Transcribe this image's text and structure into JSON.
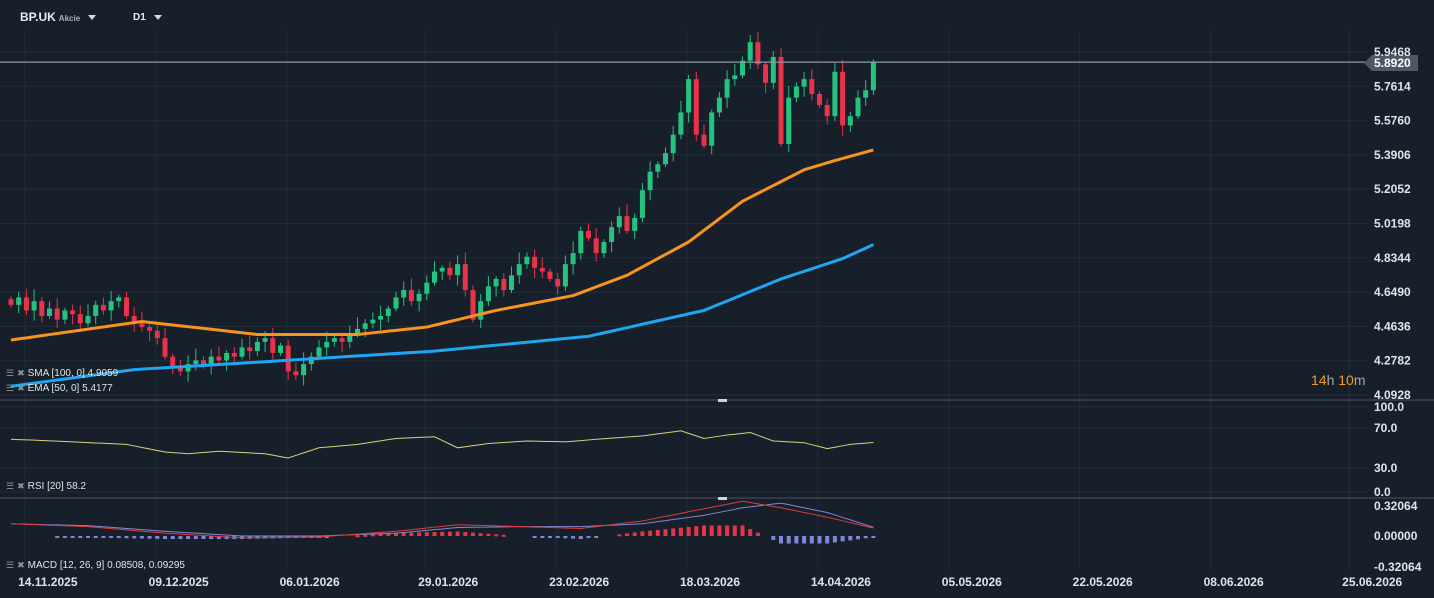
{
  "header": {
    "symbol": "BP.UK",
    "type": "Akcie",
    "timeframe": "D1"
  },
  "timer": {
    "hours": "14",
    "h": "h",
    "minutes": "10",
    "m": "m"
  },
  "legends": {
    "sma": "SMA [100, 0] 4.9059",
    "ema": "EMA [50, 0] 5.4177",
    "rsi": "RSI [20] 58.2",
    "macd": "MACD [12, 26, 9] 0.08508, 0.09295"
  },
  "colors": {
    "up": "#26c281",
    "down": "#e8334a",
    "ema": "#f7931e",
    "sma": "#1ea7f0",
    "rsi": "#d8d27a",
    "macd": "#e03a3a",
    "signal": "#7f86d8",
    "bg": "#17202a",
    "grid": "#222d37"
  },
  "chart_data": [
    {
      "type": "candlestick",
      "title": "BP.UK D1",
      "y_ticks": [
        "5.9468",
        "5.7614",
        "5.5760",
        "5.3906",
        "5.2052",
        "5.0198",
        "4.8344",
        "4.6490",
        "4.4636",
        "4.2782",
        "4.0928"
      ],
      "ylim": [
        4.0928,
        5.9468
      ],
      "current_price": "5.8920",
      "x_ticks": [
        {
          "label": "14.11.2025",
          "index": 4
        },
        {
          "label": "09.12.2025",
          "index": 21
        },
        {
          "label": "06.01.2026",
          "index": 38
        },
        {
          "label": "29.01.2026",
          "index": 56
        },
        {
          "label": "23.02.2026",
          "index": 73
        },
        {
          "label": "18.03.2026",
          "index": 90
        },
        {
          "label": "14.04.2026",
          "index": 107
        },
        {
          "label": "05.05.2026",
          "index": 124
        },
        {
          "label": "22.05.2026",
          "index": 141
        },
        {
          "label": "08.06.2026",
          "index": 158
        },
        {
          "label": "25.06.2026",
          "index": 176
        }
      ],
      "closes": [
        4.58,
        4.62,
        4.55,
        4.6,
        4.52,
        4.56,
        4.5,
        4.55,
        4.53,
        4.48,
        4.52,
        4.58,
        4.55,
        4.6,
        4.62,
        4.52,
        4.48,
        4.46,
        4.44,
        4.4,
        4.3,
        4.25,
        4.22,
        4.26,
        4.28,
        4.25,
        4.3,
        4.28,
        4.32,
        4.3,
        4.35,
        4.33,
        4.38,
        4.4,
        4.32,
        4.36,
        4.22,
        4.2,
        4.26,
        4.3,
        4.35,
        4.38,
        4.4,
        4.38,
        4.42,
        4.45,
        4.48,
        4.5,
        4.52,
        4.56,
        4.62,
        4.66,
        4.6,
        4.64,
        4.7,
        4.76,
        4.78,
        4.74,
        4.8,
        4.66,
        4.5,
        4.6,
        4.68,
        4.72,
        4.66,
        4.74,
        4.8,
        4.84,
        4.78,
        4.76,
        4.72,
        4.68,
        4.8,
        4.86,
        4.98,
        4.94,
        4.86,
        4.92,
        5.0,
        5.06,
        4.98,
        5.05,
        5.2,
        5.3,
        5.34,
        5.4,
        5.5,
        5.62,
        5.8,
        5.5,
        5.44,
        5.62,
        5.7,
        5.8,
        5.82,
        5.9,
        6.0,
        5.88,
        5.78,
        5.92,
        5.45,
        5.7,
        5.76,
        5.8,
        5.72,
        5.66,
        5.6,
        5.84,
        5.55,
        5.6,
        5.7,
        5.74,
        5.892
      ],
      "series": [
        {
          "name": "EMA [50, 0]",
          "points": [
            [
              0,
              4.39
            ],
            [
              17,
              4.49
            ],
            [
              32,
              4.42
            ],
            [
              45,
              4.42
            ],
            [
              54,
              4.46
            ],
            [
              63,
              4.55
            ],
            [
              73,
              4.63
            ],
            [
              80,
              4.74
            ],
            [
              88,
              4.92
            ],
            [
              95,
              5.14
            ],
            [
              103,
              5.31
            ],
            [
              107,
              5.36
            ],
            [
              112,
              5.4177
            ]
          ]
        },
        {
          "name": "SMA [100, 0]",
          "points": [
            [
              0,
              4.14
            ],
            [
              16,
              4.23
            ],
            [
              32,
              4.27
            ],
            [
              55,
              4.33
            ],
            [
              75,
              4.41
            ],
            [
              90,
              4.55
            ],
            [
              100,
              4.72
            ],
            [
              108,
              4.83
            ],
            [
              112,
              4.9059
            ]
          ]
        }
      ]
    },
    {
      "type": "line",
      "title": "RSI [20]",
      "y_ticks": [
        "100.0",
        "70.0",
        "30.0",
        "0.0"
      ],
      "ylim": [
        0,
        100
      ],
      "points": [
        [
          0,
          62
        ],
        [
          3,
          61
        ],
        [
          8,
          59
        ],
        [
          15,
          56
        ],
        [
          20,
          47
        ],
        [
          23,
          45
        ],
        [
          27,
          48
        ],
        [
          33,
          45
        ],
        [
          36,
          40
        ],
        [
          40,
          52
        ],
        [
          45,
          56
        ],
        [
          50,
          63
        ],
        [
          55,
          65
        ],
        [
          58,
          52
        ],
        [
          62,
          57
        ],
        [
          67,
          60
        ],
        [
          72,
          59
        ],
        [
          76,
          62
        ],
        [
          82,
          66
        ],
        [
          87,
          72
        ],
        [
          90,
          63
        ],
        [
          93,
          67
        ],
        [
          96,
          70
        ],
        [
          99,
          60
        ],
        [
          103,
          58
        ],
        [
          106,
          51
        ],
        [
          109,
          56
        ],
        [
          112,
          58.2
        ]
      ]
    },
    {
      "type": "line",
      "title": "MACD [12, 26, 9]",
      "y_ticks": [
        "0.32064",
        "0.00000",
        "-0.32064"
      ],
      "ylim": [
        -0.32064,
        0.32064
      ],
      "macd": [
        [
          0,
          0.13
        ],
        [
          10,
          0.1
        ],
        [
          20,
          0.03
        ],
        [
          30,
          -0.02
        ],
        [
          40,
          -0.01
        ],
        [
          50,
          0.05
        ],
        [
          58,
          0.12
        ],
        [
          66,
          0.1
        ],
        [
          74,
          0.08
        ],
        [
          82,
          0.16
        ],
        [
          90,
          0.29
        ],
        [
          95,
          0.37
        ],
        [
          100,
          0.3
        ],
        [
          106,
          0.2
        ],
        [
          112,
          0.08508
        ]
      ],
      "signal": [
        [
          0,
          0.13
        ],
        [
          10,
          0.11
        ],
        [
          20,
          0.05
        ],
        [
          30,
          0.0
        ],
        [
          40,
          0.0
        ],
        [
          50,
          0.03
        ],
        [
          58,
          0.09
        ],
        [
          66,
          0.1
        ],
        [
          74,
          0.1
        ],
        [
          82,
          0.13
        ],
        [
          90,
          0.22
        ],
        [
          95,
          0.3
        ],
        [
          100,
          0.35
        ],
        [
          106,
          0.25
        ],
        [
          112,
          0.09295
        ]
      ]
    }
  ]
}
